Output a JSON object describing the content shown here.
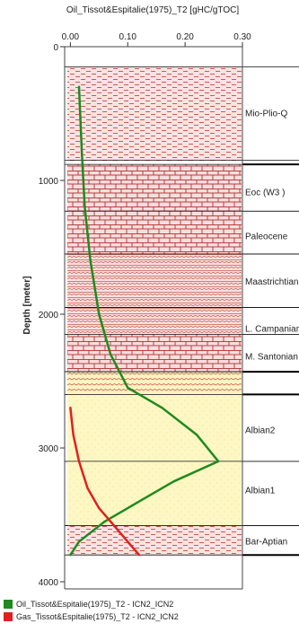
{
  "chart_data": {
    "type": "line",
    "title": "Oil_Tissot&Espitalie(1975)_T2 [gHC/gTOC]",
    "xlabel": "",
    "ylabel": "Depth [meter]",
    "xlim": [
      -0.01,
      0.3
    ],
    "ylim": [
      0,
      4000
    ],
    "x_ticks": [
      "0.00",
      "0.10",
      "0.20",
      "0.30"
    ],
    "x_tick_values": [
      0.0,
      0.1,
      0.2,
      0.3
    ],
    "y_ticks": [
      "0",
      "1000",
      "2000",
      "3000",
      "4000"
    ],
    "y_tick_values": [
      0,
      1000,
      2000,
      3000,
      4000
    ],
    "y_inverted": true,
    "series": [
      {
        "name": "Oil_Tissot&Espitalie(1975)_T2 - ICN2_ICN2",
        "color": "#1f8a1f",
        "depth": [
          300,
          800,
          1200,
          1600,
          2000,
          2300,
          2550,
          2700,
          2900,
          3100,
          3250,
          3400,
          3550,
          3700,
          3800
        ],
        "values": [
          0.015,
          0.02,
          0.025,
          0.035,
          0.05,
          0.07,
          0.1,
          0.16,
          0.22,
          0.258,
          0.18,
          0.12,
          0.06,
          0.015,
          0.0
        ]
      },
      {
        "name": "Gas_Tissot&Espitalie(1975)_T2 - ICN2_ICN2",
        "color": "#e02020",
        "depth": [
          2700,
          2900,
          3100,
          3300,
          3450,
          3550,
          3650,
          3750,
          3800
        ],
        "values": [
          0.0,
          0.005,
          0.015,
          0.03,
          0.05,
          0.07,
          0.09,
          0.11,
          0.12
        ]
      }
    ],
    "formations": [
      {
        "name": "Mio-Plio-Q",
        "top": 150,
        "base": 850,
        "pattern": "shale",
        "label_depth": 500
      },
      {
        "name": "Eoc (W3 )",
        "top": 880,
        "base": 1230,
        "pattern": "limestone",
        "label_depth": 1090
      },
      {
        "name": "Paleocene",
        "top": 1230,
        "base": 1550,
        "pattern": "limestone",
        "label_depth": 1420
      },
      {
        "name": "Maastrichtian",
        "top": 1550,
        "base": 1950,
        "pattern": "marl",
        "label_depth": 1760
      },
      {
        "name": "L. Campanian",
        "top": 1950,
        "base": 2150,
        "pattern": "marl",
        "label_depth": 2110
      },
      {
        "name": "M. Santonian",
        "top": 2150,
        "base": 2430,
        "pattern": "limestone",
        "label_depth": 2320
      },
      {
        "name": "",
        "top": 2430,
        "base": 2600,
        "pattern": "marl-yellow",
        "label_depth": 0
      },
      {
        "name": "Albian2",
        "top": 2600,
        "base": 3100,
        "pattern": "sand",
        "label_depth": 2870
      },
      {
        "name": "Albian1",
        "top": 3100,
        "base": 3580,
        "pattern": "sand",
        "label_depth": 3320
      },
      {
        "name": "Bar-Aptian",
        "top": 3580,
        "base": 3800,
        "pattern": "shale",
        "label_depth": 3700
      }
    ],
    "legend_position": "bottom-left",
    "grid": false
  }
}
